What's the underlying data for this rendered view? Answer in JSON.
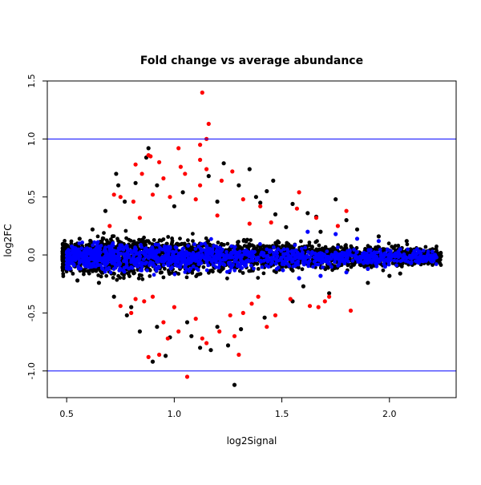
{
  "chart_data": {
    "type": "scatter",
    "title": "Fold change vs average abundance",
    "xlabel": "log2Signal",
    "ylabel": "log2FC",
    "xlim": [
      0.41,
      2.31
    ],
    "ylim": [
      -1.23,
      1.5
    ],
    "x_ticks": [
      0.5,
      1.0,
      1.5,
      2.0
    ],
    "x_tick_labels": [
      "0.5",
      "1.0",
      "1.5",
      "2.0"
    ],
    "y_ticks": [
      -1.0,
      -0.5,
      0.0,
      0.5,
      1.0,
      1.5
    ],
    "y_tick_labels": [
      "-1.0",
      "-0.5",
      "0.0",
      "0.5",
      "1.0",
      "1.5"
    ],
    "reference_lines": [
      1.0,
      -1.0
    ],
    "reference_line_color": "#0000ff",
    "series": [
      {
        "color": "#000000",
        "points": [
          [
            0.88,
            0.92
          ],
          [
            0.87,
            0.84
          ],
          [
            0.73,
            0.7
          ],
          [
            0.82,
            0.62
          ],
          [
            1.23,
            0.79
          ],
          [
            1.35,
            0.74
          ],
          [
            1.46,
            0.64
          ],
          [
            1.43,
            0.55
          ],
          [
            1.55,
            0.44
          ],
          [
            1.75,
            0.48
          ],
          [
            1.62,
            0.36
          ],
          [
            1.8,
            0.3
          ],
          [
            1.95,
            0.16
          ],
          [
            2.08,
            0.12
          ],
          [
            2.2,
            0.05
          ],
          [
            2.24,
            -0.01
          ],
          [
            0.62,
            0.22
          ],
          [
            0.56,
            0.14
          ],
          [
            0.68,
            0.38
          ],
          [
            0.77,
            0.46
          ],
          [
            1.04,
            0.54
          ],
          [
            1.16,
            0.68
          ],
          [
            1.3,
            0.6
          ],
          [
            0.92,
            0.6
          ],
          [
            1.0,
            0.42
          ],
          [
            1.2,
            0.46
          ],
          [
            1.4,
            0.45
          ],
          [
            1.47,
            0.35
          ],
          [
            0.65,
            -0.24
          ],
          [
            0.72,
            -0.36
          ],
          [
            0.78,
            -0.52
          ],
          [
            0.84,
            -0.66
          ],
          [
            0.92,
            -0.62
          ],
          [
            0.98,
            -0.71
          ],
          [
            1.08,
            -0.7
          ],
          [
            1.2,
            -0.62
          ],
          [
            1.31,
            -0.64
          ],
          [
            1.42,
            -0.54
          ],
          [
            1.55,
            -0.4
          ],
          [
            1.72,
            -0.33
          ],
          [
            1.9,
            -0.24
          ],
          [
            2.05,
            -0.16
          ],
          [
            1.28,
            -1.12
          ],
          [
            0.96,
            -0.87
          ],
          [
            0.9,
            -0.92
          ],
          [
            1.17,
            -0.82
          ],
          [
            0.6,
            -0.14
          ],
          [
            0.55,
            -0.22
          ],
          [
            1.6,
            -0.27
          ],
          [
            1.66,
            0.33
          ],
          [
            1.52,
            0.24
          ],
          [
            1.12,
            -0.8
          ],
          [
            1.25,
            -0.78
          ],
          [
            0.74,
            0.6
          ],
          [
            1.38,
            0.5
          ],
          [
            1.68,
            0.2
          ],
          [
            1.85,
            0.22
          ],
          [
            2.12,
            -0.05
          ],
          [
            2.0,
            -0.18
          ],
          [
            0.8,
            -0.45
          ],
          [
            1.06,
            -0.58
          ]
        ],
        "envelope": {
          "x_range": [
            0.48,
            2.24
          ],
          "center": -0.01,
          "count": 2600
        }
      },
      {
        "color": "#0000ff",
        "points": [
          [
            2.21,
            0.0
          ],
          [
            2.17,
            -0.05
          ],
          [
            2.14,
            0.03
          ],
          [
            2.1,
            -0.07
          ],
          [
            2.05,
            0.05
          ],
          [
            1.98,
            -0.1
          ],
          [
            1.95,
            0.12
          ],
          [
            1.9,
            -0.12
          ],
          [
            1.85,
            0.14
          ],
          [
            1.8,
            -0.15
          ],
          [
            1.75,
            0.18
          ],
          [
            1.68,
            -0.18
          ],
          [
            1.62,
            0.2
          ],
          [
            1.58,
            -0.2
          ]
        ],
        "envelope": {
          "x_range": [
            0.5,
            2.22
          ],
          "center": -0.02,
          "count": 1200
        }
      },
      {
        "color": "#ff0000",
        "points": [
          [
            1.13,
            1.4
          ],
          [
            1.16,
            1.13
          ],
          [
            1.15,
            1.0
          ],
          [
            1.12,
            0.95
          ],
          [
            0.88,
            0.86
          ],
          [
            0.89,
            0.85
          ],
          [
            1.02,
            0.92
          ],
          [
            0.93,
            0.8
          ],
          [
            0.82,
            0.78
          ],
          [
            1.03,
            0.76
          ],
          [
            1.12,
            0.82
          ],
          [
            0.85,
            0.7
          ],
          [
            0.95,
            0.66
          ],
          [
            1.05,
            0.7
          ],
          [
            1.12,
            0.6
          ],
          [
            1.27,
            0.72
          ],
          [
            1.15,
            0.74
          ],
          [
            1.22,
            0.64
          ],
          [
            1.32,
            0.48
          ],
          [
            0.72,
            0.52
          ],
          [
            0.75,
            0.5
          ],
          [
            0.81,
            0.46
          ],
          [
            0.9,
            0.52
          ],
          [
            0.98,
            0.5
          ],
          [
            1.1,
            0.48
          ],
          [
            1.4,
            0.42
          ],
          [
            1.57,
            0.4
          ],
          [
            1.58,
            0.54
          ],
          [
            1.66,
            0.32
          ],
          [
            1.8,
            0.38
          ],
          [
            1.76,
            0.25
          ],
          [
            0.7,
            0.25
          ],
          [
            0.84,
            0.32
          ],
          [
            1.2,
            0.34
          ],
          [
            1.35,
            0.27
          ],
          [
            1.45,
            0.28
          ],
          [
            0.75,
            -0.44
          ],
          [
            0.8,
            -0.5
          ],
          [
            0.86,
            -0.4
          ],
          [
            0.88,
            -0.88
          ],
          [
            0.93,
            -0.86
          ],
          [
            0.95,
            -0.58
          ],
          [
            0.97,
            -0.72
          ],
          [
            1.02,
            -0.66
          ],
          [
            1.06,
            -1.05
          ],
          [
            1.13,
            -0.72
          ],
          [
            1.15,
            -0.76
          ],
          [
            1.21,
            -0.66
          ],
          [
            1.26,
            -0.52
          ],
          [
            1.3,
            -0.86
          ],
          [
            1.32,
            -0.5
          ],
          [
            1.36,
            -0.42
          ],
          [
            1.43,
            -0.62
          ],
          [
            1.47,
            -0.52
          ],
          [
            1.63,
            -0.44
          ],
          [
            1.67,
            -0.45
          ],
          [
            1.72,
            -0.36
          ],
          [
            1.82,
            -0.48
          ],
          [
            1.7,
            -0.4
          ],
          [
            0.9,
            -0.36
          ],
          [
            1.0,
            -0.45
          ],
          [
            1.1,
            -0.55
          ],
          [
            1.28,
            -0.7
          ],
          [
            0.82,
            -0.38
          ],
          [
            1.39,
            -0.36
          ],
          [
            1.54,
            -0.38
          ]
        ]
      }
    ]
  }
}
